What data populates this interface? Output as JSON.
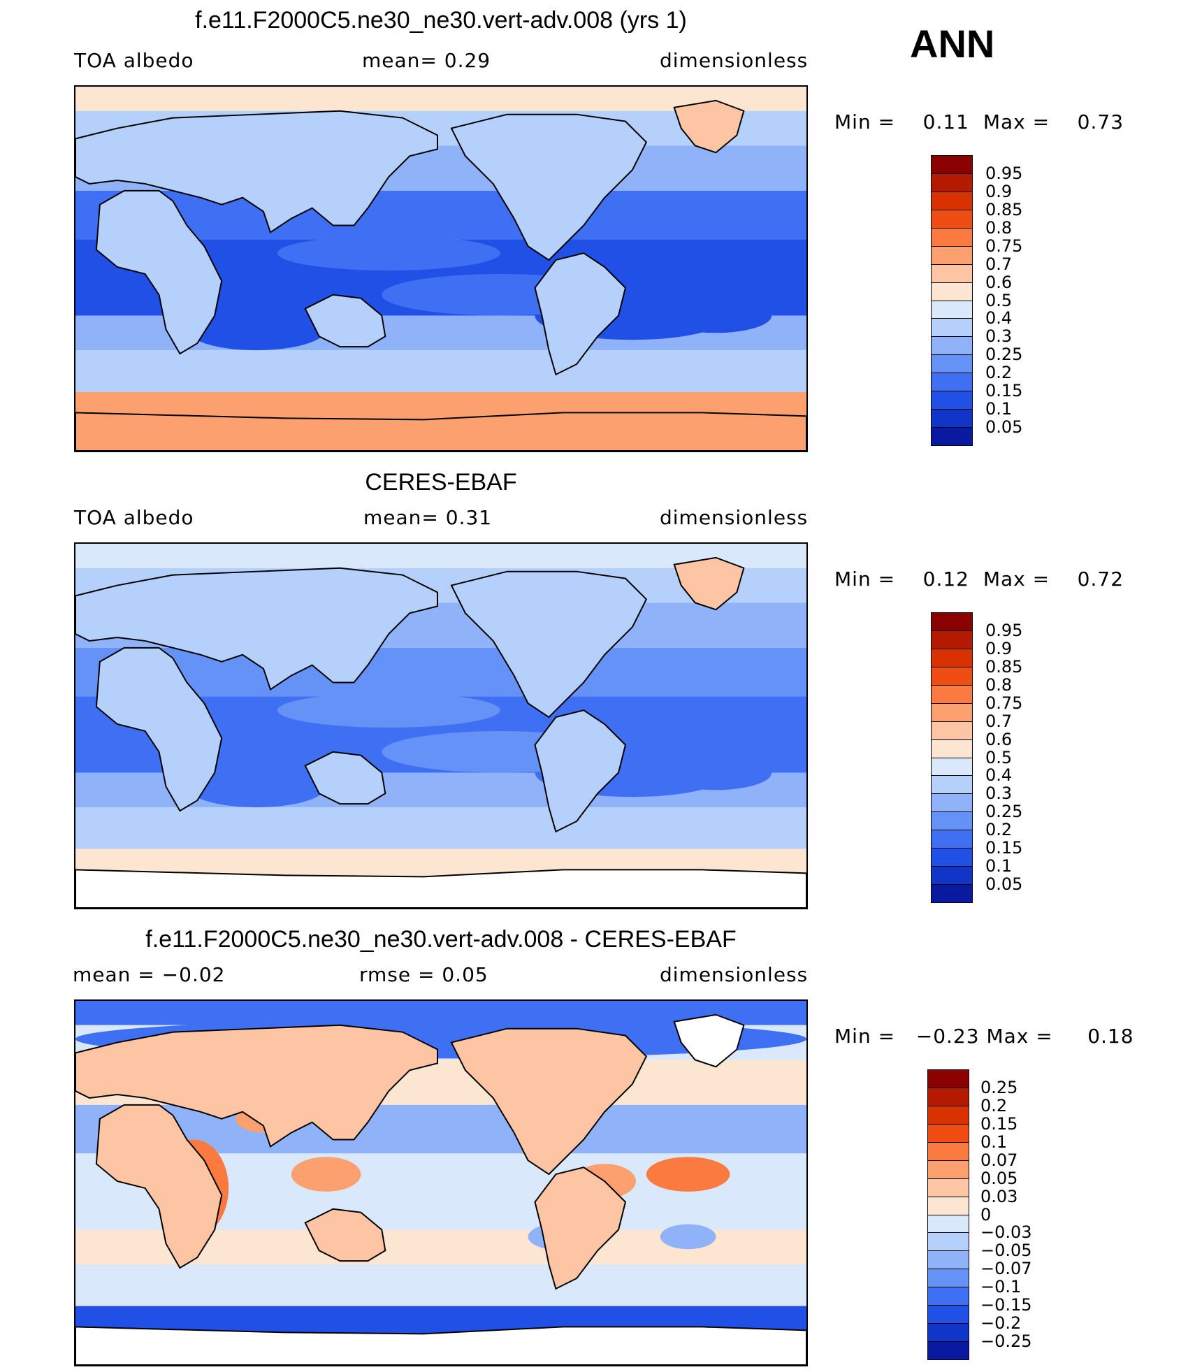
{
  "season": "ANN",
  "panels": [
    {
      "title": "f.e11.F2000C5.ne30_ne30.vert-adv.008 (yrs 1)",
      "left_label": "TOA  albedo",
      "center_label": "mean=     0.29",
      "right_label": "dimensionless",
      "min_label": "Min  =",
      "min_value": "0.11",
      "max_label": "Max  =",
      "max_value": "0.73",
      "kind": "model",
      "colorbar": {
        "labels": [
          "0.95",
          "0.9",
          "0.85",
          "0.8",
          "0.75",
          "0.7",
          "0.6",
          "0.5",
          "0.4",
          "0.3",
          "0.25",
          "0.2",
          "0.15",
          "0.1",
          "0.05"
        ],
        "colors": [
          "#8b0000",
          "#b31a00",
          "#d93200",
          "#f04d15",
          "#fb7a40",
          "#fca070",
          "#fdc5a3",
          "#fde6d1",
          "#d9e8fb",
          "#b5d0fb",
          "#8fb2f8",
          "#6592f6",
          "#3f6ff2",
          "#2050e6",
          "#1235c9",
          "#0a1aa0"
        ]
      },
      "regions": {
        "polar_south": "#fca070",
        "polar_north": "#fde6d1",
        "midlat": "#b5d0fb",
        "subtropic": "#8fb2f8",
        "stratocu": "#3f6ff2",
        "deep": "#2050e6",
        "land": "#b5d0fb",
        "greenland": "#fdc5a3",
        "antarctica": "#fca070"
      }
    },
    {
      "title": "CERES-EBAF",
      "left_label": "TOA  albedo",
      "center_label": "mean=     0.31",
      "right_label": "dimensionless",
      "min_label": "Min  =",
      "min_value": "0.12",
      "max_label": "Max  =",
      "max_value": "0.72",
      "kind": "obs",
      "colorbar": {
        "labels": [
          "0.95",
          "0.9",
          "0.85",
          "0.8",
          "0.75",
          "0.7",
          "0.6",
          "0.5",
          "0.4",
          "0.3",
          "0.25",
          "0.2",
          "0.15",
          "0.1",
          "0.05"
        ],
        "colors": [
          "#8b0000",
          "#b31a00",
          "#d93200",
          "#f04d15",
          "#fb7a40",
          "#fca070",
          "#fdc5a3",
          "#fde6d1",
          "#d9e8fb",
          "#b5d0fb",
          "#8fb2f8",
          "#6592f6",
          "#3f6ff2",
          "#2050e6",
          "#1235c9",
          "#0a1aa0"
        ]
      },
      "regions": {
        "polar_south": "#fde6d1",
        "polar_north": "#d9e8fb",
        "midlat": "#b5d0fb",
        "subtropic": "#8fb2f8",
        "stratocu": "#6592f6",
        "deep": "#3f6ff2",
        "land": "#b5d0fb",
        "greenland": "#fdc5a3",
        "antarctica": "#ffffff"
      }
    },
    {
      "title": "f.e11.F2000C5.ne30_ne30.vert-adv.008 - CERES-EBAF",
      "left_label": "mean  =    −0.02",
      "center_label": "rmse  =     0.05",
      "right_label": "dimensionless",
      "min_label": "Min  =",
      "min_value": "−0.23",
      "max_label": "Max  =",
      "max_value": "0.18",
      "kind": "diff",
      "colorbar": {
        "labels": [
          "0.25",
          "0.2",
          "0.15",
          "0.1",
          "0.07",
          "0.05",
          "0.03",
          "0",
          "−0.03",
          "−0.05",
          "−0.07",
          "−0.1",
          "−0.15",
          "−0.2",
          "−0.25"
        ],
        "colors": [
          "#8b0000",
          "#b31a00",
          "#d93200",
          "#f04d15",
          "#fb7a40",
          "#fca070",
          "#fdc5a3",
          "#fde6d1",
          "#d9e8fb",
          "#b5d0fb",
          "#8fb2f8",
          "#6592f6",
          "#3f6ff2",
          "#2050e6",
          "#1235c9",
          "#0a1aa0"
        ]
      },
      "regions": {
        "polar_south": "#2050e6",
        "polar_north": "#3f6ff2",
        "midlat": "#d9e8fb",
        "subtropic": "#fde6d1",
        "stratocu": "#8fb2f8",
        "deep": "#d9e8fb",
        "land": "#fdc5a3",
        "greenland": "#ffffff",
        "antarctica": "#ffffff"
      }
    }
  ]
}
